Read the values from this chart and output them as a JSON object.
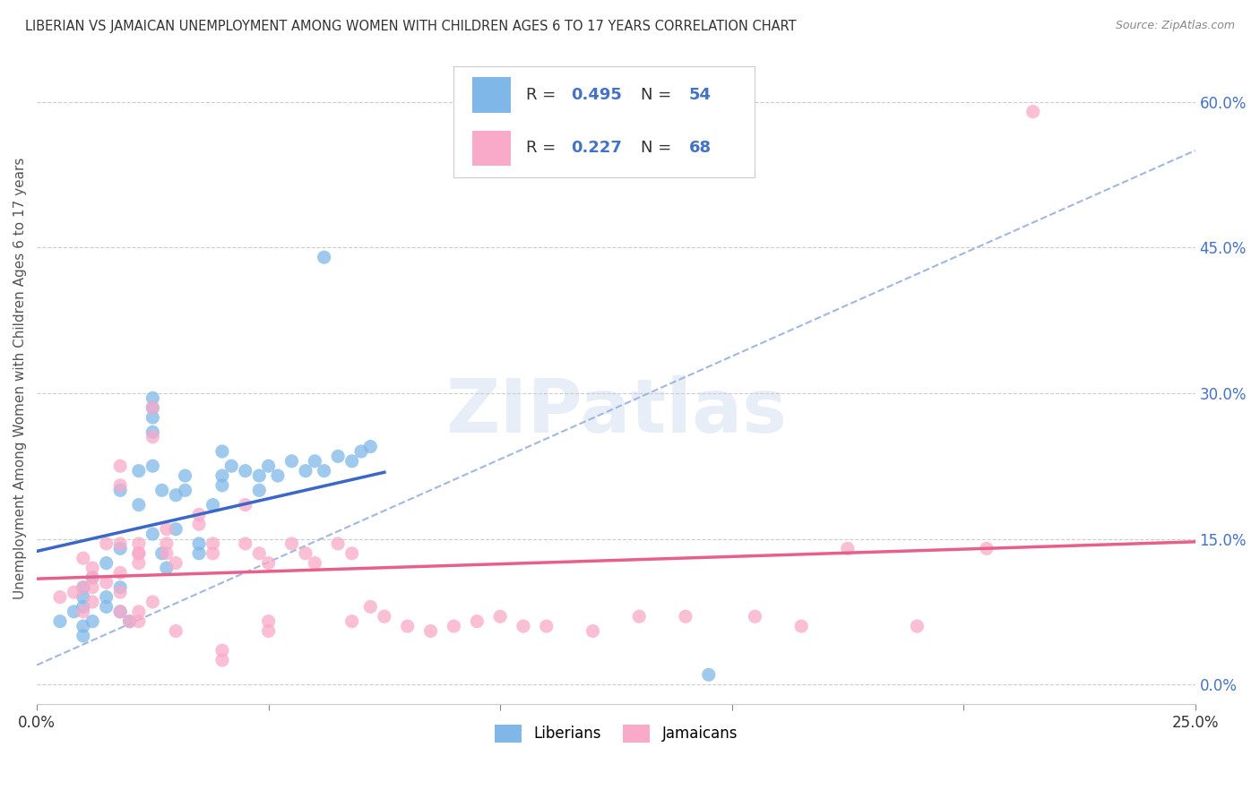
{
  "title": "LIBERIAN VS JAMAICAN UNEMPLOYMENT AMONG WOMEN WITH CHILDREN AGES 6 TO 17 YEARS CORRELATION CHART",
  "source": "Source: ZipAtlas.com",
  "ylabel": "Unemployment Among Women with Children Ages 6 to 17 years",
  "xlim": [
    0.0,
    0.25
  ],
  "ylim": [
    -0.02,
    0.65
  ],
  "yticks": [
    0.0,
    0.15,
    0.3,
    0.45,
    0.6
  ],
  "ytick_labels": [
    "0.0%",
    "15.0%",
    "30.0%",
    "45.0%",
    "60.0%"
  ],
  "xticks": [
    0.0,
    0.05,
    0.1,
    0.15,
    0.2,
    0.25
  ],
  "xtick_labels": [
    "0.0%",
    "",
    "",
    "",
    "",
    "25.0%"
  ],
  "liberian_color": "#7fb8e8",
  "jamaican_color": "#f9aac8",
  "liberian_line_color": "#3a67c8",
  "jamaican_line_color": "#e8608a",
  "dashed_line_color": "#a0b8e0",
  "R_liberian": 0.495,
  "N_liberian": 54,
  "R_jamaican": 0.227,
  "N_jamaican": 68,
  "background_color": "#ffffff",
  "grid_color": "#cccccc",
  "liberian_scatter": [
    [
      0.005,
      0.065
    ],
    [
      0.008,
      0.075
    ],
    [
      0.01,
      0.08
    ],
    [
      0.01,
      0.06
    ],
    [
      0.01,
      0.09
    ],
    [
      0.01,
      0.1
    ],
    [
      0.01,
      0.05
    ],
    [
      0.012,
      0.065
    ],
    [
      0.012,
      0.11
    ],
    [
      0.015,
      0.08
    ],
    [
      0.015,
      0.09
    ],
    [
      0.015,
      0.125
    ],
    [
      0.018,
      0.1
    ],
    [
      0.018,
      0.14
    ],
    [
      0.018,
      0.2
    ],
    [
      0.018,
      0.075
    ],
    [
      0.02,
      0.065
    ],
    [
      0.022,
      0.22
    ],
    [
      0.022,
      0.185
    ],
    [
      0.025,
      0.285
    ],
    [
      0.025,
      0.295
    ],
    [
      0.025,
      0.275
    ],
    [
      0.025,
      0.26
    ],
    [
      0.025,
      0.155
    ],
    [
      0.025,
      0.225
    ],
    [
      0.027,
      0.2
    ],
    [
      0.027,
      0.135
    ],
    [
      0.028,
      0.12
    ],
    [
      0.03,
      0.16
    ],
    [
      0.03,
      0.195
    ],
    [
      0.032,
      0.215
    ],
    [
      0.032,
      0.2
    ],
    [
      0.035,
      0.135
    ],
    [
      0.035,
      0.145
    ],
    [
      0.038,
      0.185
    ],
    [
      0.04,
      0.24
    ],
    [
      0.04,
      0.215
    ],
    [
      0.04,
      0.205
    ],
    [
      0.042,
      0.225
    ],
    [
      0.045,
      0.22
    ],
    [
      0.048,
      0.215
    ],
    [
      0.048,
      0.2
    ],
    [
      0.05,
      0.225
    ],
    [
      0.052,
      0.215
    ],
    [
      0.055,
      0.23
    ],
    [
      0.058,
      0.22
    ],
    [
      0.06,
      0.23
    ],
    [
      0.062,
      0.22
    ],
    [
      0.065,
      0.235
    ],
    [
      0.068,
      0.23
    ],
    [
      0.07,
      0.24
    ],
    [
      0.072,
      0.245
    ],
    [
      0.062,
      0.44
    ],
    [
      0.145,
      0.01
    ]
  ],
  "jamaican_scatter": [
    [
      0.005,
      0.09
    ],
    [
      0.008,
      0.095
    ],
    [
      0.01,
      0.1
    ],
    [
      0.01,
      0.075
    ],
    [
      0.01,
      0.13
    ],
    [
      0.012,
      0.12
    ],
    [
      0.012,
      0.11
    ],
    [
      0.012,
      0.1
    ],
    [
      0.012,
      0.085
    ],
    [
      0.015,
      0.145
    ],
    [
      0.015,
      0.105
    ],
    [
      0.018,
      0.115
    ],
    [
      0.018,
      0.095
    ],
    [
      0.018,
      0.145
    ],
    [
      0.018,
      0.205
    ],
    [
      0.018,
      0.225
    ],
    [
      0.018,
      0.075
    ],
    [
      0.02,
      0.065
    ],
    [
      0.022,
      0.135
    ],
    [
      0.022,
      0.145
    ],
    [
      0.022,
      0.125
    ],
    [
      0.022,
      0.135
    ],
    [
      0.022,
      0.075
    ],
    [
      0.022,
      0.065
    ],
    [
      0.025,
      0.255
    ],
    [
      0.025,
      0.085
    ],
    [
      0.025,
      0.285
    ],
    [
      0.028,
      0.16
    ],
    [
      0.028,
      0.145
    ],
    [
      0.028,
      0.135
    ],
    [
      0.03,
      0.125
    ],
    [
      0.03,
      0.055
    ],
    [
      0.035,
      0.175
    ],
    [
      0.035,
      0.165
    ],
    [
      0.038,
      0.145
    ],
    [
      0.038,
      0.135
    ],
    [
      0.04,
      0.035
    ],
    [
      0.04,
      0.025
    ],
    [
      0.045,
      0.185
    ],
    [
      0.045,
      0.145
    ],
    [
      0.048,
      0.135
    ],
    [
      0.05,
      0.125
    ],
    [
      0.05,
      0.065
    ],
    [
      0.05,
      0.055
    ],
    [
      0.055,
      0.145
    ],
    [
      0.058,
      0.135
    ],
    [
      0.06,
      0.125
    ],
    [
      0.065,
      0.145
    ],
    [
      0.068,
      0.135
    ],
    [
      0.068,
      0.065
    ],
    [
      0.072,
      0.08
    ],
    [
      0.075,
      0.07
    ],
    [
      0.08,
      0.06
    ],
    [
      0.085,
      0.055
    ],
    [
      0.09,
      0.06
    ],
    [
      0.095,
      0.065
    ],
    [
      0.1,
      0.07
    ],
    [
      0.105,
      0.06
    ],
    [
      0.11,
      0.06
    ],
    [
      0.12,
      0.055
    ],
    [
      0.13,
      0.07
    ],
    [
      0.14,
      0.07
    ],
    [
      0.155,
      0.07
    ],
    [
      0.165,
      0.06
    ],
    [
      0.175,
      0.14
    ],
    [
      0.19,
      0.06
    ],
    [
      0.205,
      0.14
    ],
    [
      0.215,
      0.59
    ]
  ]
}
